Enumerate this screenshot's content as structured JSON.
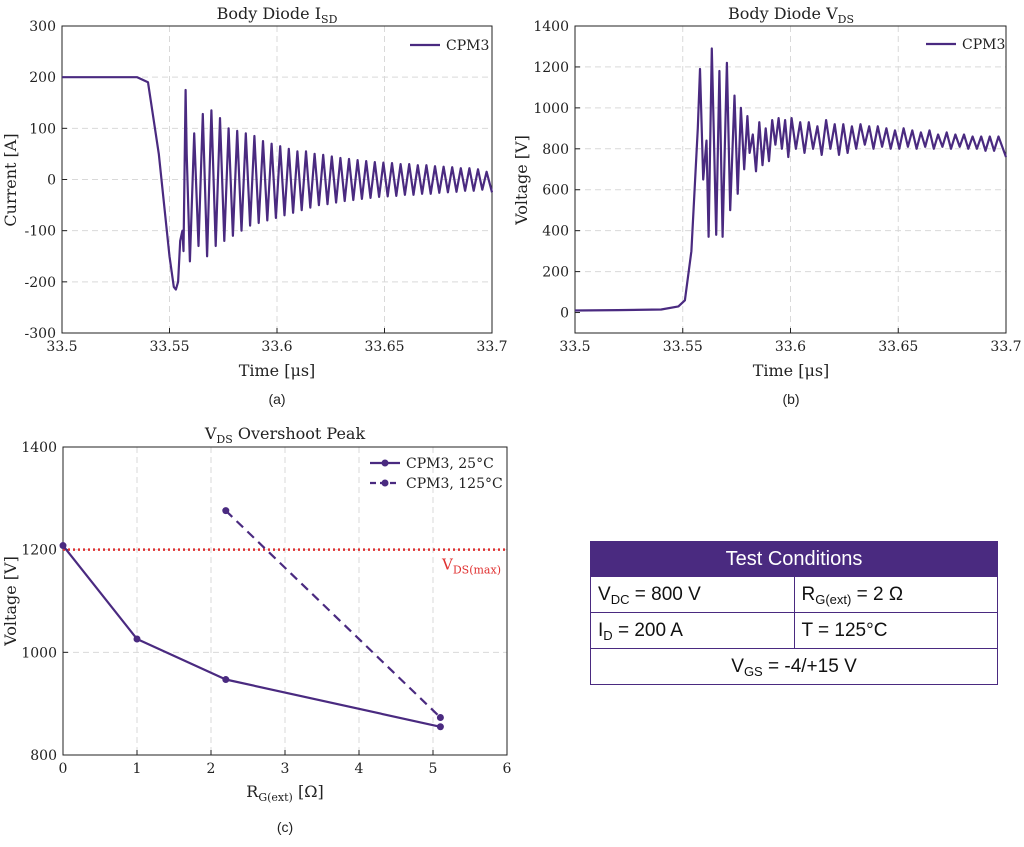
{
  "chart_data": [
    {
      "type": "line",
      "panel_label": "(a)",
      "title": "Body Diode I",
      "title_sub": "SD",
      "xlabel": "Time [μs]",
      "ylabel": "Current [A]",
      "xlim": [
        33.5,
        33.7
      ],
      "ylim": [
        -300,
        300
      ],
      "xticks": [
        "33.5",
        "33.55",
        "33.6",
        "33.65",
        "33.7"
      ],
      "yticks": [
        "-300",
        "-200",
        "-100",
        "0",
        "100",
        "200",
        "300"
      ],
      "grid": true,
      "legend": "top-right",
      "series": [
        {
          "name": "CPM3",
          "x": [
            33.5,
            33.52,
            33.535,
            33.54,
            33.545,
            33.55,
            33.552,
            33.553,
            33.554,
            33.555,
            33.556,
            33.5565,
            33.5575,
            33.558,
            33.5595,
            33.5615,
            33.5635,
            33.5655,
            33.5675,
            33.5695,
            33.5715,
            33.5735,
            33.5755,
            33.5775,
            33.5795,
            33.5815,
            33.5835,
            33.5855,
            33.5875,
            33.5895,
            33.5915,
            33.5935,
            33.5955,
            33.5975,
            33.5995,
            33.6015,
            33.6035,
            33.6055,
            33.6075,
            33.6095,
            33.6115,
            33.6135,
            33.6155,
            33.6175,
            33.6195,
            33.6215,
            33.6235,
            33.6255,
            33.6275,
            33.6295,
            33.6315,
            33.6335,
            33.6355,
            33.6375,
            33.6395,
            33.6415,
            33.6435,
            33.6455,
            33.6475,
            33.6495,
            33.6515,
            33.6535,
            33.6555,
            33.6575,
            33.6595,
            33.6615,
            33.6635,
            33.6655,
            33.6675,
            33.6695,
            33.6715,
            33.6735,
            33.6755,
            33.6775,
            33.6795,
            33.6815,
            33.6835,
            33.6855,
            33.6875,
            33.6895,
            33.6915,
            33.6935,
            33.6955,
            33.6975,
            33.7
          ],
          "values": [
            200,
            200,
            200,
            190,
            50,
            -150,
            -210,
            -215,
            -200,
            -120,
            -100,
            -140,
            175,
            50,
            -160,
            90,
            -130,
            128,
            -150,
            135,
            -130,
            120,
            -120,
            100,
            -110,
            95,
            -100,
            90,
            -90,
            85,
            -85,
            75,
            -80,
            70,
            -75,
            65,
            -70,
            60,
            -65,
            55,
            -60,
            55,
            -55,
            50,
            -50,
            48,
            -48,
            45,
            -45,
            42,
            -42,
            40,
            -40,
            38,
            -38,
            36,
            -36,
            34,
            -34,
            33,
            -33,
            32,
            -32,
            30,
            -30,
            30,
            -30,
            28,
            -28,
            28,
            -28,
            26,
            -26,
            25,
            -25,
            24,
            -24,
            22,
            -22,
            22,
            -22,
            20,
            -20,
            15,
            -25
          ]
        }
      ]
    },
    {
      "type": "line",
      "panel_label": "(b)",
      "title": "Body Diode V",
      "title_sub": "DS",
      "xlabel": "Time [μs]",
      "ylabel": "Voltage [V]",
      "xlim": [
        33.5,
        33.7
      ],
      "ylim": [
        -100,
        1400
      ],
      "xticks": [
        "33.5",
        "33.55",
        "33.6",
        "33.65",
        "33.7"
      ],
      "yticks": [
        "0",
        "200",
        "400",
        "600",
        "800",
        "1000",
        "1200",
        "1400"
      ],
      "grid": true,
      "legend": "top-right",
      "series": [
        {
          "name": "CPM3",
          "x": [
            33.5,
            33.52,
            33.54,
            33.548,
            33.551,
            33.554,
            33.557,
            33.558,
            33.5595,
            33.561,
            33.562,
            33.5635,
            33.5655,
            33.567,
            33.5685,
            33.5705,
            33.572,
            33.574,
            33.5755,
            33.577,
            33.5785,
            33.58,
            33.581,
            33.5825,
            33.584,
            33.5855,
            33.587,
            33.5885,
            33.59,
            33.5915,
            33.593,
            33.5945,
            33.596,
            33.5975,
            33.599,
            33.6005,
            33.6025,
            33.6045,
            33.6065,
            33.6085,
            33.6105,
            33.6125,
            33.6145,
            33.6165,
            33.6185,
            33.6205,
            33.6225,
            33.6245,
            33.6265,
            33.6285,
            33.6305,
            33.6325,
            33.6345,
            33.6365,
            33.6385,
            33.6405,
            33.6425,
            33.6445,
            33.6465,
            33.6485,
            33.6505,
            33.6525,
            33.6545,
            33.6565,
            33.6585,
            33.6605,
            33.6625,
            33.6645,
            33.6665,
            33.6685,
            33.6705,
            33.6725,
            33.6745,
            33.6765,
            33.6785,
            33.6805,
            33.6825,
            33.6845,
            33.6865,
            33.6885,
            33.6905,
            33.6925,
            33.6945,
            33.6965,
            33.7
          ],
          "values": [
            10,
            12,
            15,
            30,
            60,
            300,
            900,
            1190,
            650,
            840,
            370,
            1290,
            380,
            1180,
            370,
            1220,
            500,
            1060,
            580,
            1000,
            700,
            960,
            780,
            870,
            690,
            930,
            720,
            900,
            740,
            940,
            820,
            950,
            800,
            940,
            760,
            950,
            800,
            930,
            780,
            930,
            800,
            910,
            770,
            940,
            800,
            920,
            770,
            920,
            780,
            910,
            800,
            920,
            820,
            910,
            800,
            910,
            810,
            900,
            800,
            890,
            800,
            900,
            810,
            890,
            800,
            880,
            810,
            890,
            800,
            870,
            810,
            880,
            800,
            870,
            810,
            870,
            800,
            860,
            800,
            860,
            790,
            860,
            790,
            860,
            760
          ]
        }
      ]
    },
    {
      "type": "line",
      "panel_label": "(c)",
      "title": "V",
      "title_sub": "DS",
      "title_rest": " Overshoot Peak",
      "xlabel": "R",
      "xlabel_sub": "G(ext)",
      "xlabel_rest": " [Ω]",
      "ylabel": "Voltage [V]",
      "xlim": [
        0,
        6
      ],
      "ylim": [
        800,
        1400
      ],
      "xticks": [
        "0",
        "1",
        "2",
        "3",
        "4",
        "5",
        "6"
      ],
      "yticks": [
        "800",
        "1000",
        "1200",
        "1400"
      ],
      "grid": true,
      "legend": "top-right",
      "series": [
        {
          "name": "CPM3, 25°C",
          "style": "solid",
          "x": [
            0,
            1,
            2.2,
            5.1
          ],
          "values": [
            1208,
            1026,
            947,
            855
          ]
        },
        {
          "name": "CPM3, 125°C",
          "style": "dashed",
          "x": [
            2.2,
            5.1
          ],
          "values": [
            1276,
            873
          ]
        }
      ],
      "reference_line": {
        "value": 1200,
        "label": "V",
        "label_sub": "DS(max)",
        "color": "#e03030"
      }
    }
  ],
  "colors": {
    "series": "#4a2a80",
    "grid": "#d9d9d9",
    "axis": "#222222",
    "limit": "#e03030"
  },
  "conditions": {
    "title": "Test Conditions",
    "vdc_main": "V",
    "vdc_sub": "DC",
    "vdc_rest": " = 800 V",
    "rg_main": "R",
    "rg_sub": "G(ext)",
    "rg_rest": " = 2 Ω",
    "id_main": "I",
    "id_sub": "D",
    "id_rest": " = 200 A",
    "t_text": "T = 125°C",
    "vgs_main": "V",
    "vgs_sub": "GS",
    "vgs_rest": " = -4/+15 V"
  }
}
